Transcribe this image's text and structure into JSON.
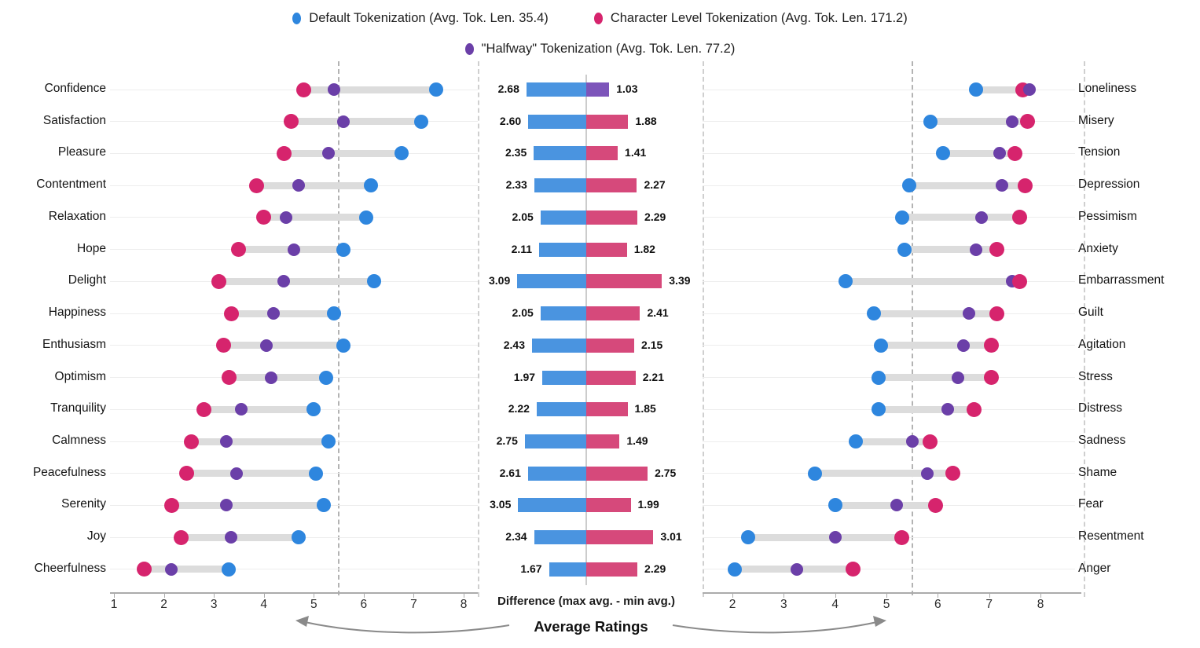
{
  "chart_data": {
    "type": "dumbbell-diff",
    "title": "",
    "legend": [
      {
        "label": "Default Tokenization (Avg. Tok. Len. 35.4)",
        "series": "default"
      },
      {
        "label": "Character Level Tokenization (Avg. Tok. Len. 171.2)",
        "series": "character"
      },
      {
        "label": "\"Halfway\" Tokenization (Avg. Tok. Len. 77.2)",
        "series": "halfway"
      }
    ],
    "colors": {
      "default": "#2e86de",
      "character": "#d6246d",
      "halfway": "#6b3fa8",
      "bar_default": "#4a94e0",
      "bar_character": "#d6497b",
      "bar_halfway": "#7d55ba",
      "connector": "#dcdcdc",
      "gridline": "#ededed",
      "axis": "#ababab",
      "dashed": "#b3b3b3",
      "separator": "#cfcfcf",
      "centerline": "#cccccc",
      "arrow": "#8a8a8a"
    },
    "left_axis": {
      "range": [
        1,
        8
      ],
      "ticks": [
        1,
        2,
        3,
        4,
        5,
        6,
        7,
        8
      ],
      "dashed_at": 5.5
    },
    "right_axis": {
      "range": [
        2,
        8
      ],
      "ticks": [
        2,
        3,
        4,
        5,
        6,
        7,
        8
      ],
      "dashed_at": 5.5
    },
    "footer": {
      "diff_label": "Difference (max avg. - min avg.)",
      "ratings_label": "Average Ratings"
    },
    "rows": [
      {
        "left_label": "Confidence",
        "left": {
          "character": 4.8,
          "halfway": 5.4,
          "default": 7.45
        },
        "diff_left": "2.68",
        "diff_right": "1.03",
        "right_bar": "halfway",
        "right_label": "Loneliness",
        "right": {
          "default": 6.75,
          "character": 7.65,
          "halfway": 7.78
        }
      },
      {
        "left_label": "Satisfaction",
        "left": {
          "character": 4.55,
          "halfway": 5.6,
          "default": 7.15
        },
        "diff_left": "2.60",
        "diff_right": "1.88",
        "right_bar": "character",
        "right_label": "Misery",
        "right": {
          "default": 5.85,
          "halfway": 7.45,
          "character": 7.75
        }
      },
      {
        "left_label": "Pleasure",
        "left": {
          "character": 4.4,
          "halfway": 5.3,
          "default": 6.75
        },
        "diff_left": "2.35",
        "diff_right": "1.41",
        "right_bar": "character",
        "right_label": "Tension",
        "right": {
          "default": 6.1,
          "halfway": 7.2,
          "character": 7.5
        }
      },
      {
        "left_label": "Contentment",
        "left": {
          "character": 3.85,
          "halfway": 4.7,
          "default": 6.15
        },
        "diff_left": "2.33",
        "diff_right": "2.27",
        "right_bar": "character",
        "right_label": "Depression",
        "right": {
          "default": 5.45,
          "halfway": 7.25,
          "character": 7.7
        }
      },
      {
        "left_label": "Relaxation",
        "left": {
          "character": 4.0,
          "halfway": 4.45,
          "default": 6.05
        },
        "diff_left": "2.05",
        "diff_right": "2.29",
        "right_bar": "character",
        "right_label": "Pessimism",
        "right": {
          "default": 5.3,
          "halfway": 6.85,
          "character": 7.6
        }
      },
      {
        "left_label": "Hope",
        "left": {
          "character": 3.5,
          "halfway": 4.6,
          "default": 5.6
        },
        "diff_left": "2.11",
        "diff_right": "1.82",
        "right_bar": "character",
        "right_label": "Anxiety",
        "right": {
          "default": 5.35,
          "halfway": 6.75,
          "character": 7.15
        }
      },
      {
        "left_label": "Delight",
        "left": {
          "character": 3.1,
          "halfway": 4.4,
          "default": 6.2
        },
        "diff_left": "3.09",
        "diff_right": "3.39",
        "right_bar": "character",
        "right_label": "Embarrassment",
        "right": {
          "default": 4.2,
          "halfway": 7.45,
          "character": 7.6
        }
      },
      {
        "left_label": "Happiness",
        "left": {
          "character": 3.35,
          "halfway": 4.2,
          "default": 5.4
        },
        "diff_left": "2.05",
        "diff_right": "2.41",
        "right_bar": "character",
        "right_label": "Guilt",
        "right": {
          "default": 4.75,
          "halfway": 6.6,
          "character": 7.15
        }
      },
      {
        "left_label": "Enthusiasm",
        "left": {
          "character": 3.2,
          "halfway": 4.05,
          "default": 5.6
        },
        "diff_left": "2.43",
        "diff_right": "2.15",
        "right_bar": "character",
        "right_label": "Agitation",
        "right": {
          "default": 4.9,
          "halfway": 6.5,
          "character": 7.05
        }
      },
      {
        "left_label": "Optimism",
        "left": {
          "character": 3.3,
          "halfway": 4.15,
          "default": 5.25
        },
        "diff_left": "1.97",
        "diff_right": "2.21",
        "right_bar": "character",
        "right_label": "Stress",
        "right": {
          "default": 4.85,
          "halfway": 6.4,
          "character": 7.05
        }
      },
      {
        "left_label": "Tranquility",
        "left": {
          "character": 2.8,
          "halfway": 3.55,
          "default": 5.0
        },
        "diff_left": "2.22",
        "diff_right": "1.85",
        "right_bar": "character",
        "right_label": "Distress",
        "right": {
          "default": 4.85,
          "halfway": 6.2,
          "character": 6.7
        }
      },
      {
        "left_label": "Calmness",
        "left": {
          "character": 2.55,
          "halfway": 3.25,
          "default": 5.3
        },
        "diff_left": "2.75",
        "diff_right": "1.49",
        "right_bar": "character",
        "right_label": "Sadness",
        "right": {
          "default": 4.4,
          "halfway": 5.5,
          "character": 5.85
        }
      },
      {
        "left_label": "Peacefulness",
        "left": {
          "character": 2.45,
          "halfway": 3.45,
          "default": 5.05
        },
        "diff_left": "2.61",
        "diff_right": "2.75",
        "right_bar": "character",
        "right_label": "Shame",
        "right": {
          "default": 3.6,
          "halfway": 5.8,
          "character": 6.3
        }
      },
      {
        "left_label": "Serenity",
        "left": {
          "character": 2.15,
          "halfway": 3.25,
          "default": 5.2
        },
        "diff_left": "3.05",
        "diff_right": "1.99",
        "right_bar": "character",
        "right_label": "Fear",
        "right": {
          "default": 4.0,
          "halfway": 5.2,
          "character": 5.95
        }
      },
      {
        "left_label": "Joy",
        "left": {
          "character": 2.35,
          "halfway": 3.35,
          "default": 4.7
        },
        "diff_left": "2.34",
        "diff_right": "3.01",
        "right_bar": "character",
        "right_label": "Resentment",
        "right": {
          "default": 2.3,
          "halfway": 4.0,
          "character": 5.3
        }
      },
      {
        "left_label": "Cheerfulness",
        "left": {
          "character": 1.6,
          "halfway": 2.15,
          "default": 3.3
        },
        "diff_left": "1.67",
        "diff_right": "2.29",
        "right_bar": "character",
        "right_label": "Anger",
        "right": {
          "default": 2.05,
          "halfway": 3.25,
          "character": 4.35
        }
      }
    ]
  }
}
